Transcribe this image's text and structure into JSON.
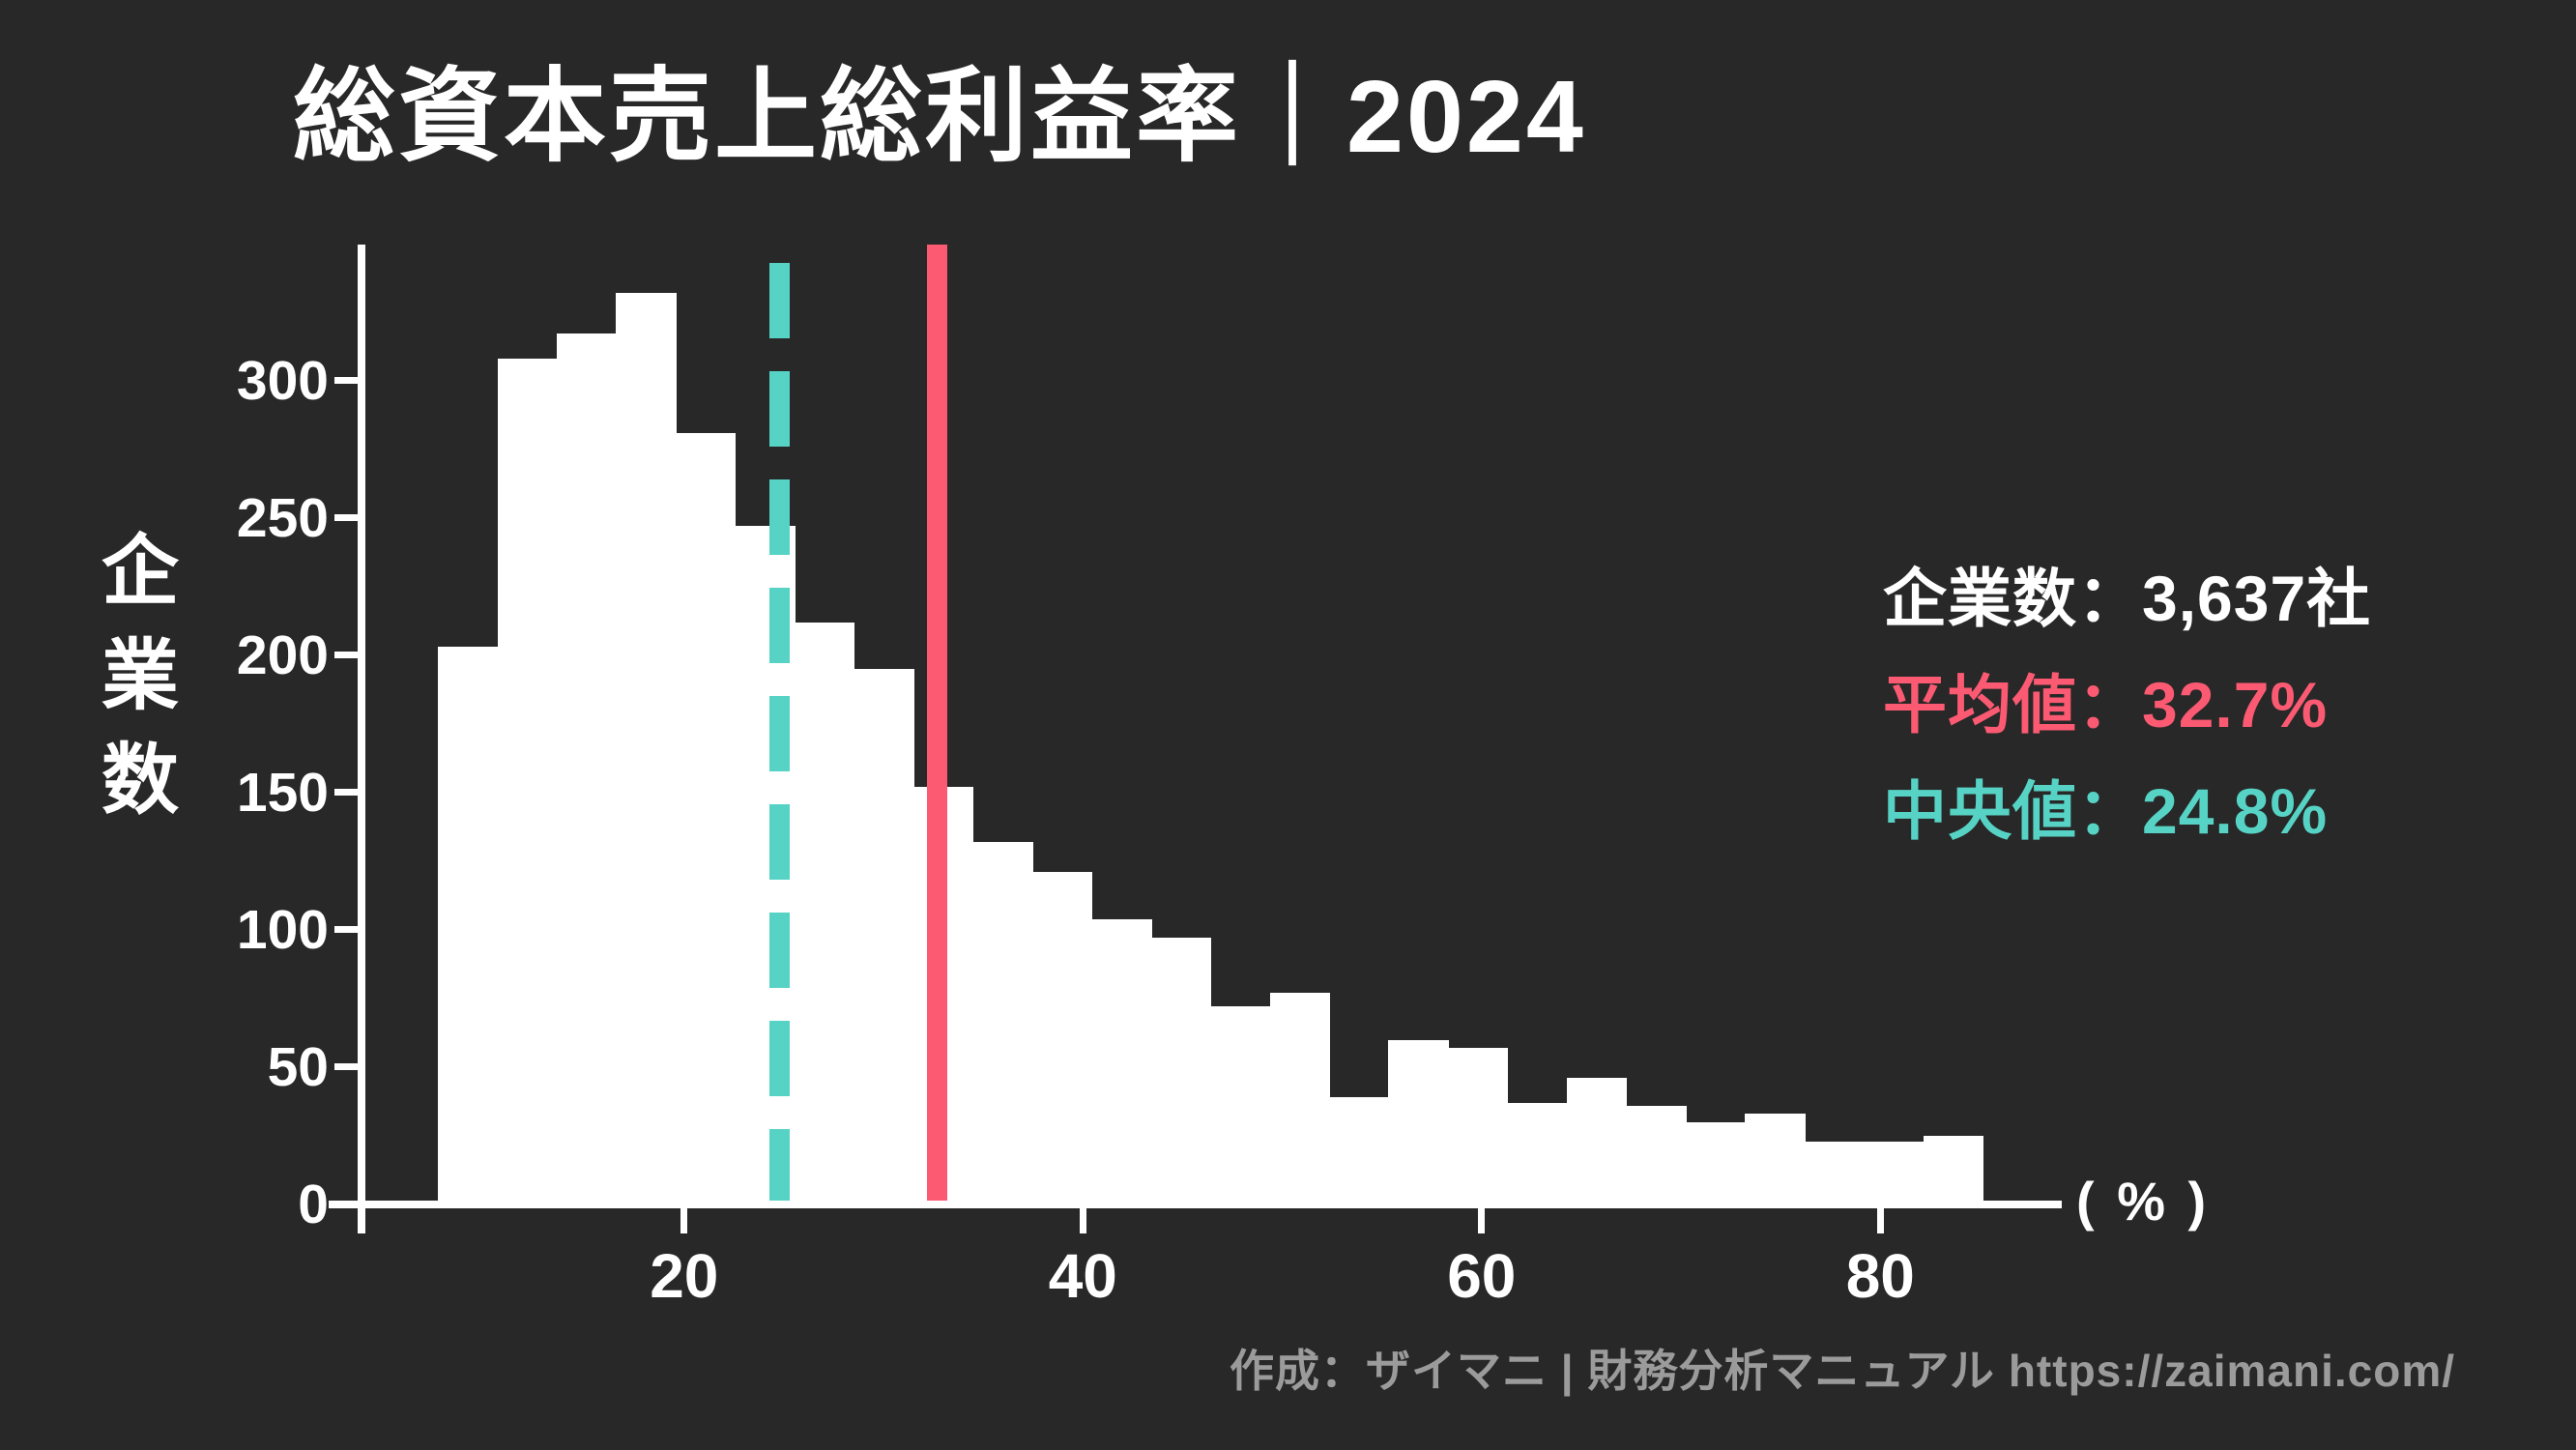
{
  "title": "総資本売上総利益率｜2024",
  "footer": "作成：ザイマニ | 財務分析マニュアル https://zaimani.com/",
  "stats": [
    {
      "text": "企業数：3,637社",
      "color": "#ffffff"
    },
    {
      "text": "平均値：32.7%",
      "color": "#fb5a72"
    },
    {
      "text": "中央値：24.8%",
      "color": "#57d3c5"
    }
  ],
  "colors": {
    "background": "#282828",
    "bar": "#ffffff",
    "axis": "#ffffff",
    "mean_line": "#fb5a72",
    "median_line": "#57d3c5",
    "footer_text": "#9b9b9b"
  },
  "chart_data": {
    "type": "bar",
    "subtype": "histogram",
    "title": "総資本売上総利益率｜2024",
    "xlabel": "( % )",
    "ylabel": "企業数",
    "x_ticks": [
      20,
      40,
      60,
      80
    ],
    "y_ticks": [
      0,
      50,
      100,
      150,
      200,
      250,
      300
    ],
    "xlim": [
      3.8,
      89.1
    ],
    "ylim": [
      0,
      350
    ],
    "grid": false,
    "legend_position": "none",
    "bin_start": 7.65,
    "bin_width": 2.98,
    "counts": [
      203,
      308,
      317,
      332,
      281,
      247,
      212,
      195,
      152,
      132,
      121,
      104,
      97,
      72,
      77,
      39,
      60,
      57,
      37,
      46,
      36,
      30,
      33,
      23,
      23,
      25
    ],
    "mean": 32.7,
    "median": 24.8,
    "companies_total": "3,637"
  }
}
